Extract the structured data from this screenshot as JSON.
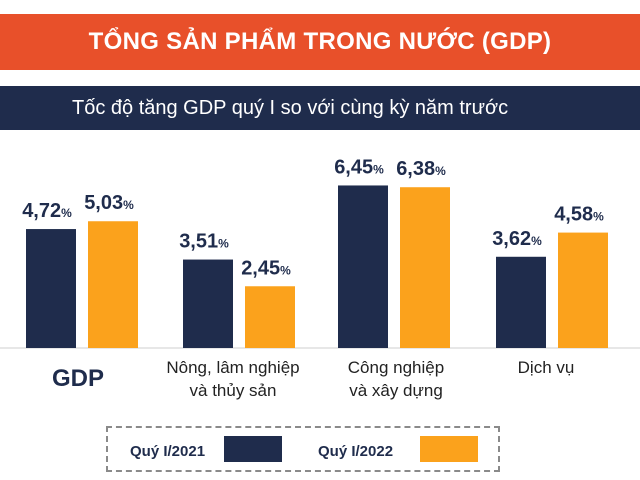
{
  "header": {
    "title": "TỔNG SẢN PHẨM TRONG NƯỚC (GDP)",
    "subtitle": "Tốc độ tăng GDP quý I so với cùng kỳ năm trước"
  },
  "chart_data": {
    "type": "bar",
    "categories": [
      [
        "GDP"
      ],
      [
        "Nông, lâm nghiệp",
        "và thủy sản"
      ],
      [
        "Công nghiệp",
        "và xây dựng"
      ],
      [
        "Dịch vụ"
      ]
    ],
    "series": [
      {
        "name": "Quý I/2021",
        "color": "#1f2c4c",
        "values": [
          4.72,
          3.51,
          6.45,
          3.62
        ],
        "labels": [
          "4,72",
          "3,51",
          "6,45",
          "3,62"
        ]
      },
      {
        "name": "Quý I/2022",
        "color": "#fba21c",
        "values": [
          5.03,
          2.45,
          6.38,
          4.58
        ],
        "labels": [
          "5,03",
          "2,45",
          "6,38",
          "4,58"
        ]
      }
    ],
    "unit": "%",
    "ylim": [
      0,
      7
    ],
    "grid": false,
    "legend_position": "bottom"
  }
}
